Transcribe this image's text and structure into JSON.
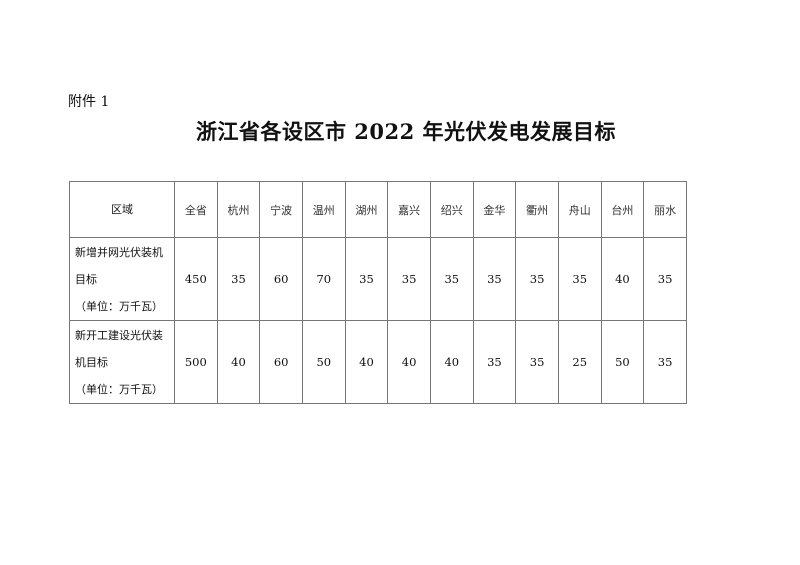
{
  "attachment_label": "附件 1",
  "title": "浙江省各设区市 2022 年光伏发电发展目标",
  "table": {
    "header_label": "区域",
    "regions": [
      "全省",
      "杭州",
      "宁波",
      "温州",
      "湖州",
      "嘉兴",
      "绍兴",
      "金华",
      "衢州",
      "舟山",
      "台州",
      "丽水"
    ],
    "rows": [
      {
        "label_lines": [
          "新增并网光伏装机",
          "目标",
          "（单位：万千瓦）"
        ],
        "values": [
          "450",
          "35",
          "60",
          "70",
          "35",
          "35",
          "35",
          "35",
          "35",
          "35",
          "40",
          "35"
        ]
      },
      {
        "label_lines": [
          "新开工建设光伏装",
          "机目标",
          "（单位：万千瓦）"
        ],
        "values": [
          "500",
          "40",
          "60",
          "50",
          "40",
          "40",
          "40",
          "35",
          "35",
          "25",
          "50",
          "35"
        ]
      }
    ]
  }
}
